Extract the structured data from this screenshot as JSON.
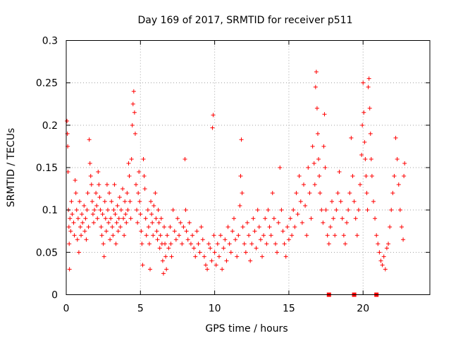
{
  "chart_data": {
    "type": "scatter",
    "title": "Day 169 of 2017, SRMTID for receiver p511",
    "xlabel": "GPS time / hours",
    "ylabel": "SRMTID / TECUs",
    "xlim": [
      0,
      24.5
    ],
    "ylim": [
      0,
      0.3
    ],
    "xticks": [
      0,
      5,
      10,
      15,
      20
    ],
    "xtick_labels": [
      "0",
      "5",
      "10",
      "15",
      "20"
    ],
    "yticks": [
      0,
      0.05,
      0.1,
      0.15,
      0.2,
      0.25,
      0.3
    ],
    "ytick_labels": [
      "0",
      "0.05",
      "0.1",
      "0.15",
      "0.2",
      "0.25",
      "0.3"
    ],
    "grid": true,
    "marker": "plus",
    "color": "#ff0000",
    "baseline_markers": [
      {
        "x": 17.7,
        "y": 0
      },
      {
        "x": 19.4,
        "y": 0
      },
      {
        "x": 20.9,
        "y": 0
      }
    ],
    "series": [
      {
        "name": "SRMTID",
        "points": [
          [
            0.05,
            0.205
          ],
          [
            0.08,
            0.19
          ],
          [
            0.1,
            0.175
          ],
          [
            0.12,
            0.145
          ],
          [
            0.15,
            0.1
          ],
          [
            0.18,
            0.08
          ],
          [
            0.2,
            0.06
          ],
          [
            0.22,
            0.03
          ],
          [
            0.25,
            0.09
          ],
          [
            0.3,
            0.075
          ],
          [
            0.35,
            0.11
          ],
          [
            0.4,
            0.095
          ],
          [
            0.5,
            0.085
          ],
          [
            0.55,
            0.07
          ],
          [
            0.6,
            0.135
          ],
          [
            0.65,
            0.12
          ],
          [
            0.7,
            0.1
          ],
          [
            0.75,
            0.065
          ],
          [
            0.8,
            0.09
          ],
          [
            0.85,
            0.05
          ],
          [
            0.9,
            0.11
          ],
          [
            0.95,
            0.08
          ],
          [
            1.0,
            0.07
          ],
          [
            1.05,
            0.095
          ],
          [
            1.1,
            0.085
          ],
          [
            1.2,
            0.105
          ],
          [
            1.25,
            0.075
          ],
          [
            1.3,
            0.09
          ],
          [
            1.35,
            0.065
          ],
          [
            1.4,
            0.1
          ],
          [
            1.45,
            0.12
          ],
          [
            1.5,
            0.08
          ],
          [
            1.55,
            0.183
          ],
          [
            1.6,
            0.155
          ],
          [
            1.65,
            0.14
          ],
          [
            1.7,
            0.13
          ],
          [
            1.75,
            0.11
          ],
          [
            1.8,
            0.095
          ],
          [
            1.85,
            0.085
          ],
          [
            1.9,
            0.1
          ],
          [
            2.0,
            0.12
          ],
          [
            2.05,
            0.105
          ],
          [
            2.1,
            0.09
          ],
          [
            2.15,
            0.145
          ],
          [
            2.2,
            0.13
          ],
          [
            2.25,
            0.115
          ],
          [
            2.3,
            0.1
          ],
          [
            2.35,
            0.08
          ],
          [
            2.4,
            0.07
          ],
          [
            2.45,
            0.095
          ],
          [
            2.5,
            0.06
          ],
          [
            2.55,
            0.045
          ],
          [
            2.6,
            0.11
          ],
          [
            2.65,
            0.09
          ],
          [
            2.7,
            0.075
          ],
          [
            2.75,
            0.13
          ],
          [
            2.8,
            0.1
          ],
          [
            2.85,
            0.085
          ],
          [
            2.9,
            0.12
          ],
          [
            2.95,
            0.065
          ],
          [
            3.0,
            0.09
          ],
          [
            3.05,
            0.11
          ],
          [
            3.1,
            0.08
          ],
          [
            3.15,
            0.07
          ],
          [
            3.2,
            0.1
          ],
          [
            3.25,
            0.13
          ],
          [
            3.3,
            0.095
          ],
          [
            3.35,
            0.06
          ],
          [
            3.4,
            0.085
          ],
          [
            3.45,
            0.105
          ],
          [
            3.5,
            0.075
          ],
          [
            3.55,
            0.09
          ],
          [
            3.6,
            0.115
          ],
          [
            3.65,
            0.08
          ],
          [
            3.7,
            0.1
          ],
          [
            3.8,
            0.125
          ],
          [
            3.85,
            0.09
          ],
          [
            3.9,
            0.07
          ],
          [
            3.95,
            0.11
          ],
          [
            4.0,
            0.095
          ],
          [
            4.05,
            0.085
          ],
          [
            4.1,
            0.12
          ],
          [
            4.15,
            0.1
          ],
          [
            4.2,
            0.155
          ],
          [
            4.25,
            0.14
          ],
          [
            4.3,
            0.11
          ],
          [
            4.35,
            0.09
          ],
          [
            4.4,
            0.16
          ],
          [
            4.45,
            0.2
          ],
          [
            4.5,
            0.225
          ],
          [
            4.55,
            0.24
          ],
          [
            4.6,
            0.215
          ],
          [
            4.65,
            0.19
          ],
          [
            4.7,
            0.13
          ],
          [
            4.75,
            0.1
          ],
          [
            4.8,
            0.085
          ],
          [
            4.85,
            0.12
          ],
          [
            4.9,
            0.145
          ],
          [
            4.95,
            0.11
          ],
          [
            5.0,
            0.095
          ],
          [
            5.05,
            0.075
          ],
          [
            5.1,
            0.06
          ],
          [
            5.15,
            0.035
          ],
          [
            5.2,
            0.16
          ],
          [
            5.25,
            0.14
          ],
          [
            5.3,
            0.125
          ],
          [
            5.35,
            0.09
          ],
          [
            5.4,
            0.07
          ],
          [
            5.5,
            0.1
          ],
          [
            5.55,
            0.08
          ],
          [
            5.6,
            0.06
          ],
          [
            5.65,
            0.03
          ],
          [
            5.7,
            0.11
          ],
          [
            5.75,
            0.095
          ],
          [
            5.8,
            0.085
          ],
          [
            5.85,
            0.07
          ],
          [
            5.9,
            0.105
          ],
          [
            6.0,
            0.12
          ],
          [
            6.05,
            0.09
          ],
          [
            6.1,
            0.075
          ],
          [
            6.15,
            0.065
          ],
          [
            6.2,
            0.1
          ],
          [
            6.25,
            0.085
          ],
          [
            6.3,
            0.055
          ],
          [
            6.35,
            0.07
          ],
          [
            6.4,
            0.09
          ],
          [
            6.45,
            0.06
          ],
          [
            6.5,
            0.04
          ],
          [
            6.55,
            0.025
          ],
          [
            6.6,
            0.08
          ],
          [
            6.65,
            0.06
          ],
          [
            6.7,
            0.045
          ],
          [
            6.75,
            0.03
          ],
          [
            6.8,
            0.07
          ],
          [
            6.9,
            0.055
          ],
          [
            7.0,
            0.08
          ],
          [
            7.05,
            0.06
          ],
          [
            7.1,
            0.045
          ],
          [
            7.2,
            0.1
          ],
          [
            7.3,
            0.075
          ],
          [
            7.4,
            0.065
          ],
          [
            7.5,
            0.09
          ],
          [
            7.6,
            0.07
          ],
          [
            7.7,
            0.085
          ],
          [
            7.8,
            0.06
          ],
          [
            7.9,
            0.08
          ],
          [
            8.0,
            0.16
          ],
          [
            8.05,
            0.1
          ],
          [
            8.1,
            0.075
          ],
          [
            8.2,
            0.065
          ],
          [
            8.3,
            0.085
          ],
          [
            8.4,
            0.06
          ],
          [
            8.5,
            0.07
          ],
          [
            8.6,
            0.055
          ],
          [
            8.7,
            0.045
          ],
          [
            8.8,
            0.075
          ],
          [
            8.9,
            0.06
          ],
          [
            9.0,
            0.05
          ],
          [
            9.1,
            0.08
          ],
          [
            9.2,
            0.065
          ],
          [
            9.3,
            0.045
          ],
          [
            9.4,
            0.035
          ],
          [
            9.5,
            0.03
          ],
          [
            9.6,
            0.06
          ],
          [
            9.7,
            0.055
          ],
          [
            9.8,
            0.04
          ],
          [
            9.85,
            0.197
          ],
          [
            9.9,
            0.212
          ],
          [
            9.95,
            0.07
          ],
          [
            10.0,
            0.05
          ],
          [
            10.1,
            0.035
          ],
          [
            10.2,
            0.06
          ],
          [
            10.3,
            0.045
          ],
          [
            10.4,
            0.07
          ],
          [
            10.5,
            0.03
          ],
          [
            10.6,
            0.055
          ],
          [
            10.7,
            0.065
          ],
          [
            10.8,
            0.04
          ],
          [
            10.9,
            0.08
          ],
          [
            11.0,
            0.06
          ],
          [
            11.1,
            0.05
          ],
          [
            11.2,
            0.075
          ],
          [
            11.3,
            0.09
          ],
          [
            11.4,
            0.065
          ],
          [
            11.5,
            0.045
          ],
          [
            11.6,
            0.07
          ],
          [
            11.7,
            0.105
          ],
          [
            11.75,
            0.14
          ],
          [
            11.8,
            0.183
          ],
          [
            11.85,
            0.12
          ],
          [
            11.9,
            0.08
          ],
          [
            12.0,
            0.06
          ],
          [
            12.1,
            0.05
          ],
          [
            12.2,
            0.085
          ],
          [
            12.3,
            0.07
          ],
          [
            12.4,
            0.04
          ],
          [
            12.5,
            0.06
          ],
          [
            12.6,
            0.09
          ],
          [
            12.7,
            0.075
          ],
          [
            12.8,
            0.055
          ],
          [
            12.9,
            0.1
          ],
          [
            13.0,
            0.08
          ],
          [
            13.1,
            0.065
          ],
          [
            13.2,
            0.045
          ],
          [
            13.3,
            0.07
          ],
          [
            13.4,
            0.09
          ],
          [
            13.5,
            0.06
          ],
          [
            13.6,
            0.1
          ],
          [
            13.7,
            0.08
          ],
          [
            13.8,
            0.07
          ],
          [
            13.9,
            0.12
          ],
          [
            14.0,
            0.09
          ],
          [
            14.1,
            0.06
          ],
          [
            14.2,
            0.05
          ],
          [
            14.3,
            0.085
          ],
          [
            14.4,
            0.15
          ],
          [
            14.5,
            0.1
          ],
          [
            14.6,
            0.075
          ],
          [
            14.7,
            0.06
          ],
          [
            14.8,
            0.045
          ],
          [
            14.9,
            0.08
          ],
          [
            15.0,
            0.065
          ],
          [
            15.1,
            0.09
          ],
          [
            15.2,
            0.07
          ],
          [
            15.3,
            0.1
          ],
          [
            15.4,
            0.08
          ],
          [
            15.5,
            0.12
          ],
          [
            15.6,
            0.095
          ],
          [
            15.7,
            0.14
          ],
          [
            15.8,
            0.11
          ],
          [
            15.9,
            0.085
          ],
          [
            16.0,
            0.13
          ],
          [
            16.1,
            0.105
          ],
          [
            16.2,
            0.07
          ],
          [
            16.3,
            0.15
          ],
          [
            16.4,
            0.12
          ],
          [
            16.5,
            0.09
          ],
          [
            16.6,
            0.175
          ],
          [
            16.7,
            0.155
          ],
          [
            16.75,
            0.13
          ],
          [
            16.8,
            0.245
          ],
          [
            16.85,
            0.263
          ],
          [
            16.9,
            0.22
          ],
          [
            16.95,
            0.19
          ],
          [
            17.0,
            0.16
          ],
          [
            17.05,
            0.14
          ],
          [
            17.1,
            0.12
          ],
          [
            17.2,
            0.1
          ],
          [
            17.3,
            0.085
          ],
          [
            17.35,
            0.175
          ],
          [
            17.4,
            0.213
          ],
          [
            17.45,
            0.15
          ],
          [
            17.5,
            0.1
          ],
          [
            17.6,
            0.07
          ],
          [
            17.7,
            0.06
          ],
          [
            17.8,
            0.08
          ],
          [
            17.9,
            0.11
          ],
          [
            18.0,
            0.09
          ],
          [
            18.1,
            0.07
          ],
          [
            18.2,
            0.1
          ],
          [
            18.3,
            0.12
          ],
          [
            18.4,
            0.145
          ],
          [
            18.5,
            0.11
          ],
          [
            18.6,
            0.09
          ],
          [
            18.7,
            0.07
          ],
          [
            18.8,
            0.06
          ],
          [
            18.9,
            0.085
          ],
          [
            19.0,
            0.1
          ],
          [
            19.1,
            0.12
          ],
          [
            19.2,
            0.185
          ],
          [
            19.3,
            0.14
          ],
          [
            19.4,
            0.11
          ],
          [
            19.5,
            0.09
          ],
          [
            19.6,
            0.07
          ],
          [
            19.7,
            0.1
          ],
          [
            19.8,
            0.13
          ],
          [
            19.9,
            0.165
          ],
          [
            19.95,
            0.2
          ],
          [
            20.0,
            0.25
          ],
          [
            20.05,
            0.215
          ],
          [
            20.1,
            0.18
          ],
          [
            20.15,
            0.16
          ],
          [
            20.2,
            0.14
          ],
          [
            20.25,
            0.12
          ],
          [
            20.3,
            0.1
          ],
          [
            20.35,
            0.245
          ],
          [
            20.4,
            0.255
          ],
          [
            20.45,
            0.22
          ],
          [
            20.5,
            0.19
          ],
          [
            20.55,
            0.16
          ],
          [
            20.6,
            0.14
          ],
          [
            20.7,
            0.11
          ],
          [
            20.8,
            0.09
          ],
          [
            20.9,
            0.07
          ],
          [
            21.0,
            0.06
          ],
          [
            21.1,
            0.05
          ],
          [
            21.2,
            0.04
          ],
          [
            21.3,
            0.035
          ],
          [
            21.4,
            0.045
          ],
          [
            21.5,
            0.03
          ],
          [
            21.6,
            0.055
          ],
          [
            21.7,
            0.06
          ],
          [
            21.8,
            0.08
          ],
          [
            21.9,
            0.1
          ],
          [
            22.0,
            0.12
          ],
          [
            22.1,
            0.14
          ],
          [
            22.2,
            0.185
          ],
          [
            22.3,
            0.16
          ],
          [
            22.4,
            0.13
          ],
          [
            22.5,
            0.1
          ],
          [
            22.6,
            0.08
          ],
          [
            22.7,
            0.065
          ],
          [
            22.75,
            0.14
          ],
          [
            22.8,
            0.155
          ]
        ]
      }
    ]
  }
}
